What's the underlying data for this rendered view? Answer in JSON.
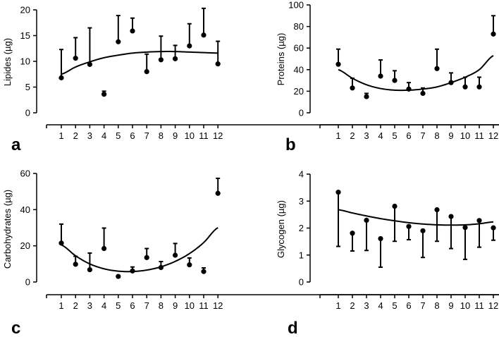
{
  "chart_data": [
    {
      "type": "scatter",
      "panel": "a",
      "ylabel": "Lipides (µg)",
      "xlabel": "",
      "categories": [
        "1",
        "2",
        "3",
        "4",
        "5",
        "6",
        "7",
        "8",
        "9",
        "10",
        "11",
        "12"
      ],
      "ylim": [
        0,
        20
      ],
      "yticks": [
        0,
        5,
        10,
        15,
        20
      ],
      "series": [
        {
          "name": "mean",
          "values": [
            6.8,
            10.6,
            9.4,
            3.6,
            13.8,
            15.9,
            8.0,
            10.3,
            10.5,
            13.0,
            15.1,
            9.5
          ]
        },
        {
          "name": "error_top",
          "values": [
            12.3,
            14.6,
            16.5,
            4.2,
            18.9,
            18.4,
            11.4,
            14.9,
            13.1,
            17.3,
            20.3,
            13.9
          ]
        }
      ],
      "fit": [
        7.5,
        8.9,
        9.9,
        10.7,
        11.2,
        11.6,
        11.8,
        11.9,
        11.9,
        11.8,
        11.7,
        11.6
      ]
    },
    {
      "type": "scatter",
      "panel": "b",
      "ylabel": "Proteins (µg)",
      "xlabel": "",
      "categories": [
        "1",
        "2",
        "3",
        "4",
        "5",
        "6",
        "7",
        "8",
        "9",
        "10",
        "11",
        "12"
      ],
      "ylim": [
        0,
        100
      ],
      "yticks": [
        0,
        20,
        40,
        60,
        80,
        100
      ],
      "series": [
        {
          "name": "mean",
          "values": [
            45,
            23,
            15,
            34,
            30,
            22,
            18,
            41,
            28,
            24,
            24,
            73
          ]
        },
        {
          "name": "error_top",
          "values": [
            59,
            32,
            18,
            49,
            39,
            28,
            23,
            59,
            37,
            33,
            33,
            90
          ]
        }
      ],
      "fit": [
        40,
        32,
        26,
        22.5,
        21,
        21,
        22,
        24,
        28,
        33,
        40,
        53
      ]
    },
    {
      "type": "scatter",
      "panel": "c",
      "ylabel": "Carbohydrates (µg)",
      "xlabel": "",
      "categories": [
        "1",
        "2",
        "3",
        "4",
        "5",
        "6",
        "7",
        "8",
        "9",
        "10",
        "11",
        "12"
      ],
      "ylim": [
        0,
        60
      ],
      "yticks": [
        0,
        20,
        40,
        60
      ],
      "series": [
        {
          "name": "mean",
          "values": [
            21.5,
            9.8,
            6.8,
            18.5,
            3.1,
            6.1,
            13.5,
            8.0,
            14.8,
            9.5,
            5.8,
            49.0
          ]
        },
        {
          "name": "error_top",
          "values": [
            32.0,
            14.2,
            16.0,
            29.8,
            3.5,
            8.3,
            18.5,
            11.3,
            21.3,
            13.3,
            7.8,
            57.3
          ]
        }
      ],
      "fit": [
        20.5,
        14.5,
        10.0,
        7.3,
        6.0,
        5.8,
        6.6,
        8.4,
        11.4,
        15.7,
        21.8,
        30.0
      ]
    },
    {
      "type": "scatter",
      "panel": "d",
      "ylabel": "Glycogen (µg)",
      "xlabel": "",
      "categories": [
        "1",
        "2",
        "3",
        "4",
        "5",
        "6",
        "7",
        "8",
        "9",
        "10",
        "11",
        "12"
      ],
      "ylim": [
        0,
        4
      ],
      "yticks": [
        0,
        1,
        2,
        3,
        4
      ],
      "series": [
        {
          "name": "mean",
          "values": [
            3.33,
            1.81,
            2.29,
            1.61,
            2.81,
            2.06,
            1.9,
            2.68,
            2.43,
            2.02,
            2.28,
            2.01
          ]
        },
        {
          "name": "error_bottom",
          "values": [
            1.32,
            1.15,
            1.17,
            0.55,
            1.51,
            1.57,
            0.91,
            1.51,
            1.24,
            0.84,
            1.29,
            1.55
          ]
        }
      ],
      "fit": [
        2.68,
        2.56,
        2.45,
        2.35,
        2.27,
        2.2,
        2.15,
        2.12,
        2.11,
        2.12,
        2.16,
        2.23
      ]
    }
  ]
}
